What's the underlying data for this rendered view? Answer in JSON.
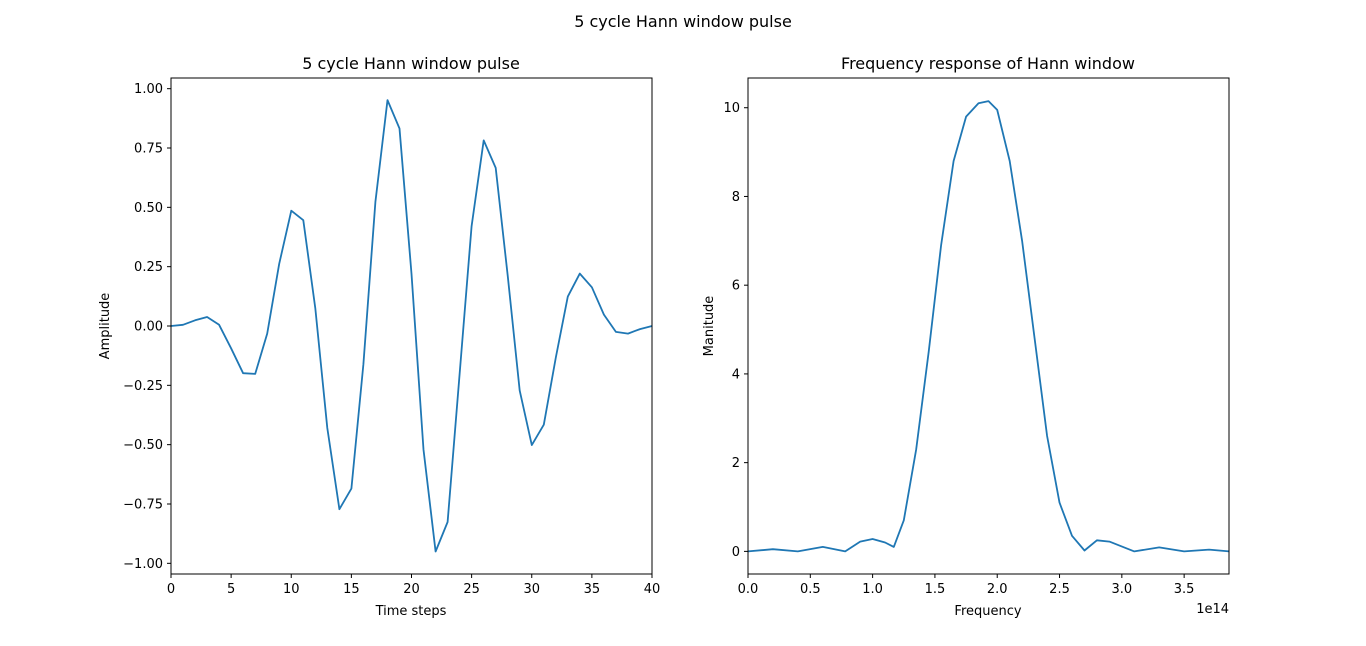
{
  "figure": {
    "suptitle": "5 cycle Hann window pulse"
  },
  "colors": {
    "line": "#1f77b4",
    "axis": "#000000",
    "background": "#ffffff"
  },
  "chart_data": [
    {
      "type": "line",
      "title": "5 cycle Hann window pulse",
      "xlabel": "Time steps",
      "ylabel": "Amplitude",
      "xlim": [
        0,
        40
      ],
      "ylim": [
        -1.045,
        1.045
      ],
      "xticks": [
        0,
        5,
        10,
        15,
        20,
        25,
        30,
        35,
        40
      ],
      "xtick_labels": [
        "0",
        "5",
        "10",
        "15",
        "20",
        "25",
        "30",
        "35",
        "40"
      ],
      "yticks": [
        -1.0,
        -0.75,
        -0.5,
        -0.25,
        0.0,
        0.25,
        0.5,
        0.75,
        1.0
      ],
      "ytick_labels": [
        "−1.00",
        "−0.75",
        "−0.50",
        "−0.25",
        "0.00",
        "0.25",
        "0.50",
        "0.75",
        "1.00"
      ],
      "grid": false,
      "series": [
        {
          "x": [
            0,
            1,
            2,
            3,
            4,
            5,
            6,
            7,
            8,
            9,
            10,
            11,
            12,
            13,
            14,
            15,
            16,
            17,
            18,
            19,
            20,
            21,
            22,
            23,
            24,
            25,
            26,
            27,
            28,
            29,
            30,
            31,
            32,
            33,
            34,
            35,
            36,
            37,
            38,
            39,
            40
          ],
          "y": [
            0.0,
            0.005,
            0.024,
            0.038,
            0.005,
            -0.094,
            -0.199,
            -0.202,
            -0.032,
            0.262,
            0.486,
            0.446,
            0.075,
            -0.43,
            -0.772,
            -0.685,
            -0.161,
            0.523,
            0.952,
            0.832,
            0.22,
            -0.521,
            -0.95,
            -0.826,
            -0.203,
            0.421,
            0.782,
            0.666,
            0.213,
            -0.272,
            -0.502,
            -0.416,
            -0.133,
            0.124,
            0.221,
            0.163,
            0.048,
            -0.025,
            -0.032,
            -0.013,
            0.0
          ]
        }
      ]
    },
    {
      "type": "line",
      "title": "Frequency response of Hann window",
      "xlabel": "Frequency",
      "ylabel": "Manitude",
      "x_offset_label": "1e14",
      "xlim": [
        0,
        3.86
      ],
      "ylim": [
        -0.51,
        10.67
      ],
      "xticks": [
        0.0,
        0.5,
        1.0,
        1.5,
        2.0,
        2.5,
        3.0,
        3.5
      ],
      "xtick_labels": [
        "0.0",
        "0.5",
        "1.0",
        "1.5",
        "2.0",
        "2.5",
        "3.0",
        "3.5"
      ],
      "yticks": [
        0,
        2,
        4,
        6,
        8,
        10
      ],
      "ytick_labels": [
        "0",
        "2",
        "4",
        "6",
        "8",
        "10"
      ],
      "grid": false,
      "series": [
        {
          "x": [
            0.0,
            0.2,
            0.4,
            0.6,
            0.78,
            0.9,
            1.0,
            1.1,
            1.17,
            1.25,
            1.35,
            1.45,
            1.55,
            1.65,
            1.75,
            1.85,
            1.93,
            2.0,
            2.1,
            2.2,
            2.3,
            2.4,
            2.5,
            2.6,
            2.7,
            2.8,
            2.9,
            3.1,
            3.3,
            3.5,
            3.7,
            3.86
          ],
          "y": [
            0.0,
            0.05,
            0.0,
            0.1,
            0.0,
            0.22,
            0.28,
            0.2,
            0.1,
            0.7,
            2.3,
            4.5,
            6.9,
            8.8,
            9.8,
            10.1,
            10.15,
            9.95,
            8.8,
            7.0,
            4.8,
            2.6,
            1.1,
            0.35,
            0.02,
            0.25,
            0.22,
            0.0,
            0.09,
            0.0,
            0.04,
            0.0
          ]
        }
      ]
    }
  ]
}
